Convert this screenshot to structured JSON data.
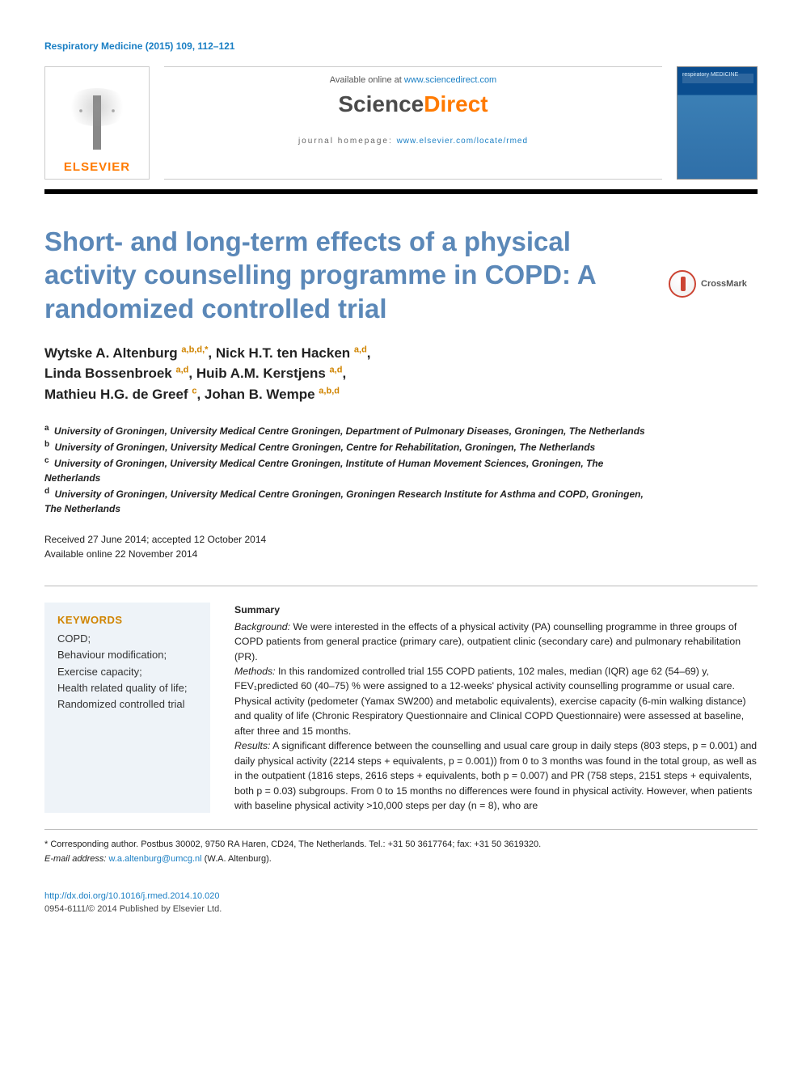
{
  "header": {
    "citation": "Respiratory Medicine (2015) 109, 112–121",
    "available_prefix": "Available online at ",
    "available_link": "www.sciencedirect.com",
    "sd_logo_left": "Science",
    "sd_logo_right": "Direct",
    "homepage_prefix": "journal homepage: ",
    "homepage_link": "www.elsevier.com/locate/rmed",
    "elsevier_word": "ELSEVIER",
    "cover_label": "respiratory MEDICINE",
    "crossmark": "CrossMark"
  },
  "title": "Short- and long-term effects of a physical activity counselling programme in COPD: A randomized controlled trial",
  "authors": [
    {
      "name": "Wytske A. Altenburg",
      "aff": "a,b,d,*"
    },
    {
      "name": "Nick H.T. ten Hacken",
      "aff": "a,d"
    },
    {
      "name": "Linda Bossenbroek",
      "aff": "a,d"
    },
    {
      "name": "Huib A.M. Kerstjens",
      "aff": "a,d"
    },
    {
      "name": "Mathieu H.G. de Greef",
      "aff": "c"
    },
    {
      "name": "Johan B. Wempe",
      "aff": "a,b,d"
    }
  ],
  "affiliations": [
    {
      "key": "a",
      "text": "University of Groningen, University Medical Centre Groningen, Department of Pulmonary Diseases, Groningen, The Netherlands"
    },
    {
      "key": "b",
      "text": "University of Groningen, University Medical Centre Groningen, Centre for Rehabilitation, Groningen, The Netherlands"
    },
    {
      "key": "c",
      "text": "University of Groningen, University Medical Centre Groningen, Institute of Human Movement Sciences, Groningen, The Netherlands"
    },
    {
      "key": "d",
      "text": "University of Groningen, University Medical Centre Groningen, Groningen Research Institute for Asthma and COPD, Groningen, The Netherlands"
    }
  ],
  "dates": {
    "received": "Received 27 June 2014; accepted 12 October 2014",
    "online": "Available online 22 November 2014"
  },
  "keywords": {
    "heading": "KEYWORDS",
    "items": "COPD;\nBehaviour modification;\nExercise capacity;\nHealth related quality of life;\nRandomized controlled trial"
  },
  "summary": {
    "heading": "Summary",
    "background_label": "Background:",
    "background": " We were interested in the effects of a physical activity (PA) counselling programme in three groups of COPD patients from general practice (primary care), outpatient clinic (secondary care) and pulmonary rehabilitation (PR).",
    "methods_label": "Methods:",
    "methods": " In this randomized controlled trial 155 COPD patients, 102 males, median (IQR) age 62 (54–69) y, FEV₁predicted 60 (40–75) % were assigned to a 12-weeks' physical activity counselling programme or usual care. Physical activity (pedometer (Yamax SW200) and metabolic equivalents), exercise capacity (6-min walking distance) and quality of life (Chronic Respiratory Questionnaire and Clinical COPD Questionnaire) were assessed at baseline, after three and 15 months.",
    "results_label": "Results:",
    "results": " A significant difference between the counselling and usual care group in daily steps (803 steps, p = 0.001) and daily physical activity (2214 steps + equivalents, p = 0.001)) from 0 to 3 months was found in the total group, as well as in the outpatient (1816 steps, 2616 steps + equivalents, both p = 0.007) and PR (758 steps, 2151 steps + equivalents, both p = 0.03) subgroups. From 0 to 15 months no differences were found in physical activity. However, when patients with baseline physical activity >10,000 steps per day (n = 8), who are"
  },
  "footnotes": {
    "corr": "* Corresponding author. Postbus 30002, 9750 RA Haren, CD24, The Netherlands. Tel.: +31 50 3617764; fax: +31 50 3619320.",
    "email_label": "E-mail address: ",
    "email": "w.a.altenburg@umcg.nl",
    "email_suffix": " (W.A. Altenburg)."
  },
  "doi": {
    "url": "http://dx.doi.org/10.1016/j.rmed.2014.10.020",
    "issn_line": "0954-6111/© 2014 Published by Elsevier Ltd."
  },
  "colors": {
    "link": "#1a7fc4",
    "title": "#5b88b8",
    "accent": "#d08400",
    "elsevier_orange": "#ff7a00",
    "kw_bg": "#eef3f8"
  }
}
